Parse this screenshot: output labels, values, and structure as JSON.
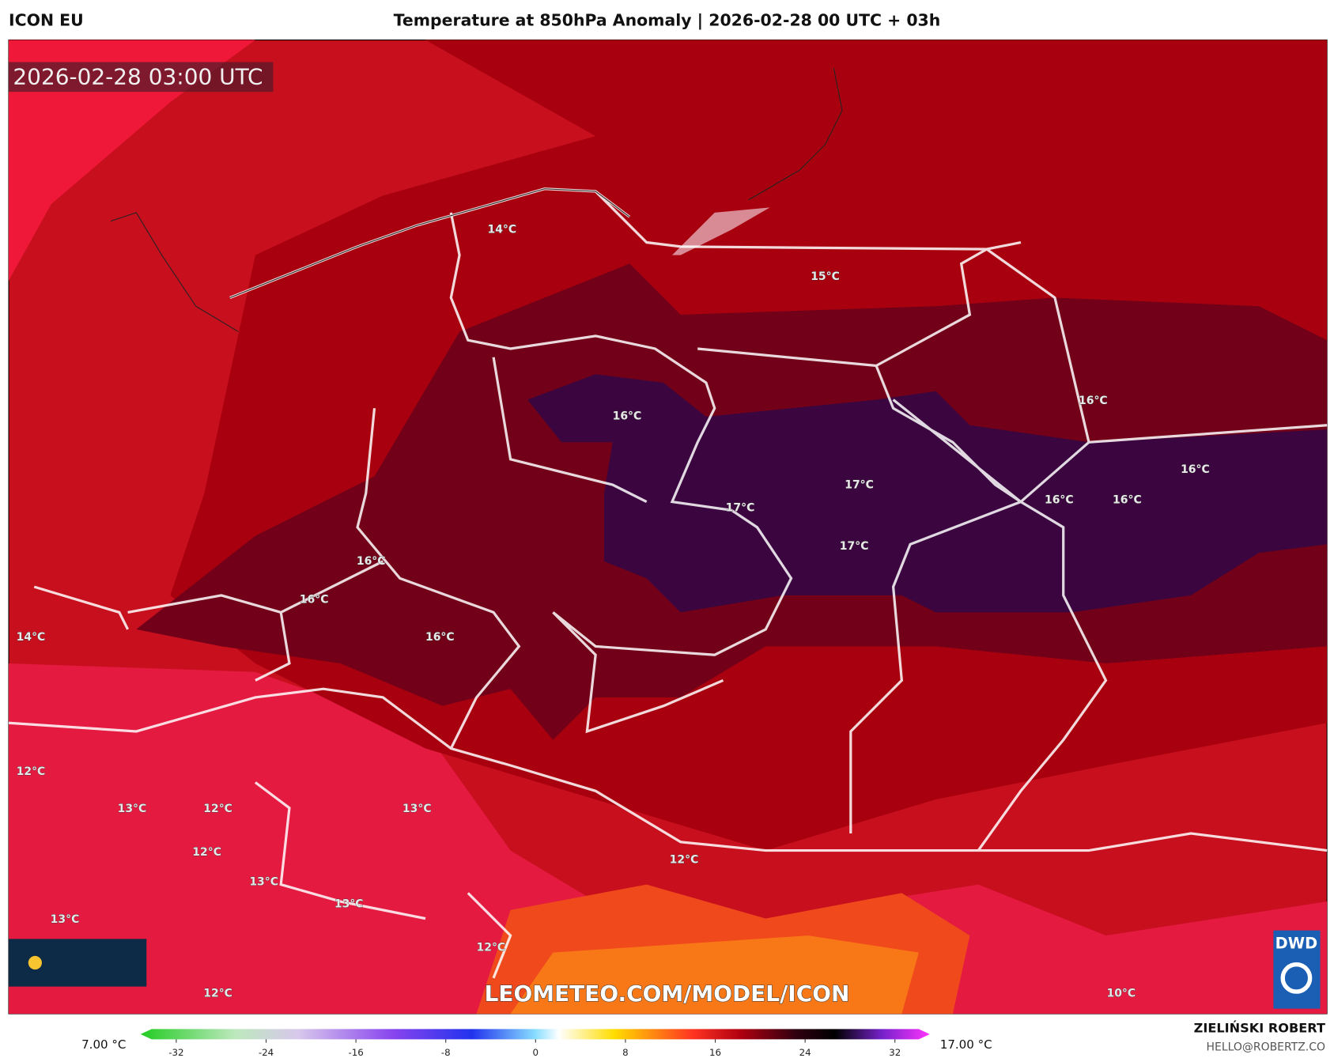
{
  "header": {
    "model": "ICON EU",
    "title": "Temperature at 850hPa Anomaly | 2026-02-28 00 UTC + 03h",
    "timestamp": "2026-02-28 03:00 UTC"
  },
  "map": {
    "labels": [
      "14°C",
      "15°C",
      "16°C",
      "16°C",
      "16°C",
      "17°C",
      "17°C",
      "16°C",
      "16°C",
      "17°C",
      "16°C",
      "16°C",
      "16°C",
      "14°C",
      "12°C",
      "13°C",
      "12°C",
      "13°C",
      "12°C",
      "13°C",
      "13°C",
      "13°C",
      "12°C",
      "12°C",
      "12°C",
      "10°C"
    ]
  },
  "colorbar": {
    "min_label": "7.00 °C",
    "max_label": "17.00 °C",
    "ticks": [
      -32,
      -24,
      -16,
      -8,
      0,
      8,
      16,
      24,
      32
    ]
  },
  "footer": {
    "watermark": "LEOMETEO.COM/MODEL/ICON",
    "author": "ZIELIŃSKI ROBERT",
    "email": "HELLO@ROBERTZ.CO",
    "logo": "DWD"
  }
}
